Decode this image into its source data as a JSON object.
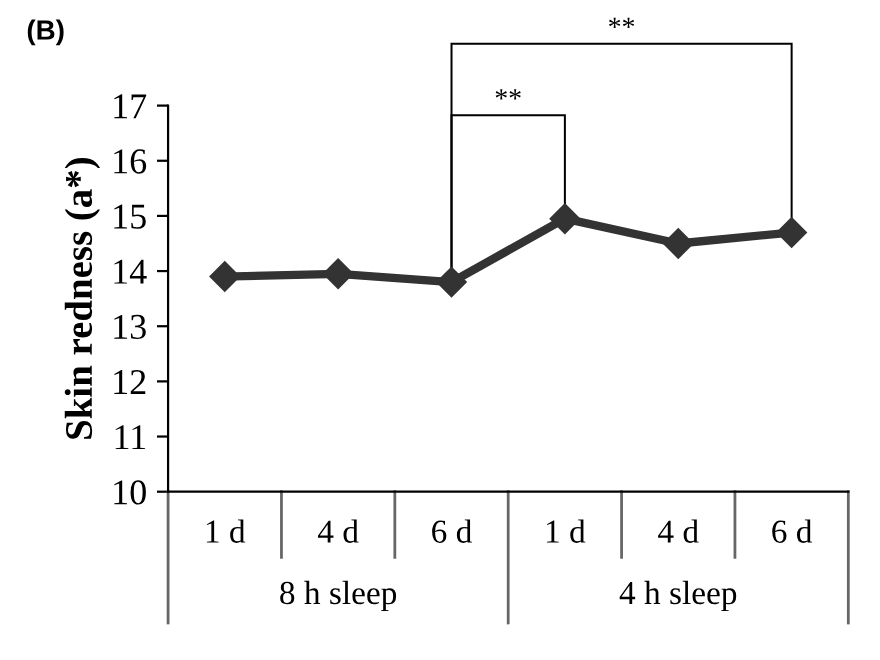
{
  "chart_data": {
    "type": "line",
    "ylabel": "Skin redness (a*)",
    "categories": [
      "1 d",
      "4 d",
      "6 d",
      "1 d",
      "4 d",
      "6 d"
    ],
    "series": [
      {
        "color": "#333333",
        "values": [
          13.9,
          13.95,
          13.8,
          14.95,
          14.5,
          14.7
        ]
      }
    ],
    "ylim": [
      10,
      17
    ],
    "yticks": [
      10,
      11,
      12,
      13,
      14,
      15,
      16,
      17
    ],
    "marker": "diamond",
    "line_style": "solid",
    "grid": false,
    "legend": false,
    "annotations": [
      "(B)",
      "**",
      "**",
      "8 h sleep",
      "4 h sleep"
    ]
  }
}
